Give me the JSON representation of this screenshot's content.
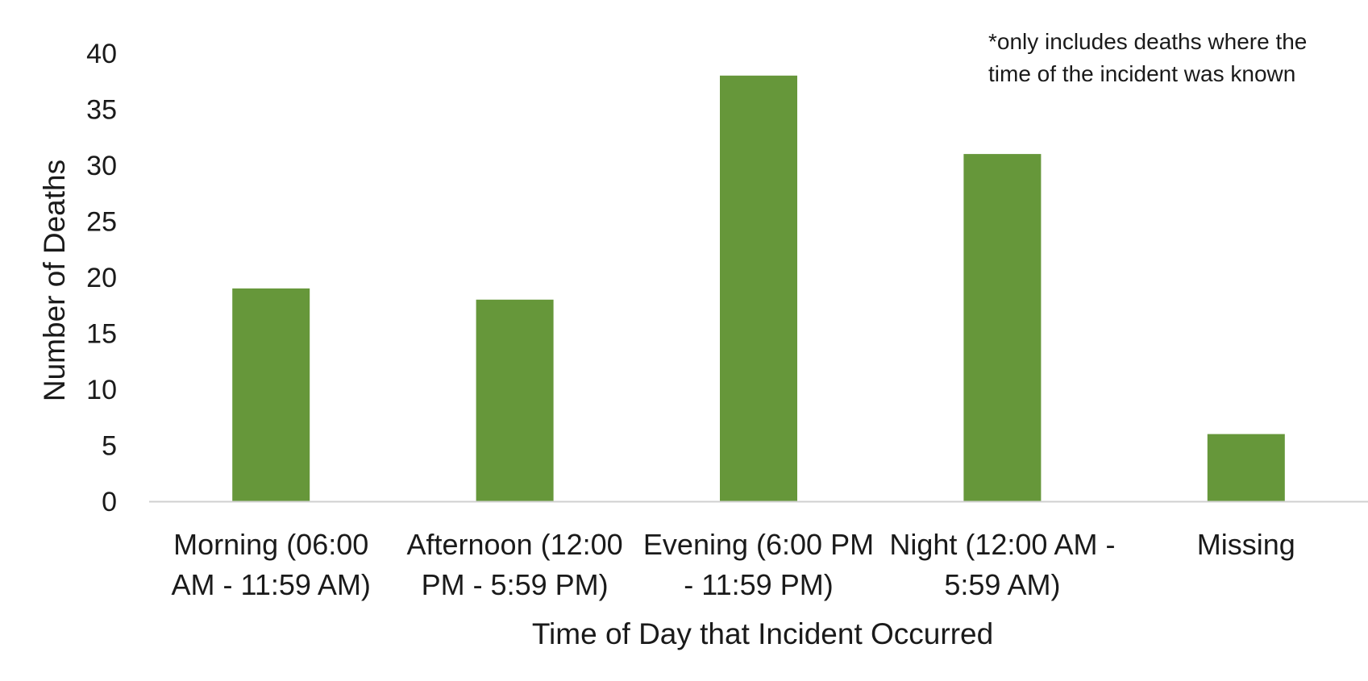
{
  "chart_data": {
    "type": "bar",
    "categories": [
      [
        "Morning (06:00",
        "AM - 11:59 AM)"
      ],
      [
        "Afternoon (12:00",
        "PM - 5:59 PM)"
      ],
      [
        "Evening (6:00 PM",
        "- 11:59 PM)"
      ],
      [
        "Night (12:00 AM -",
        "5:59 AM)"
      ],
      [
        "Missing"
      ]
    ],
    "values": [
      19,
      18,
      38,
      31,
      6
    ],
    "xlabel": "Time of Day that Incident Occurred",
    "ylabel": "Number of Deaths",
    "ylim": [
      0,
      40
    ],
    "yticks": [
      0,
      5,
      10,
      15,
      20,
      25,
      30,
      35,
      40
    ],
    "note": [
      "*only includes deaths where the",
      "time of the incident was known"
    ],
    "bar_color": "#66973a",
    "axis_color": "#d0d0d0",
    "grid": false,
    "legend": "none"
  }
}
